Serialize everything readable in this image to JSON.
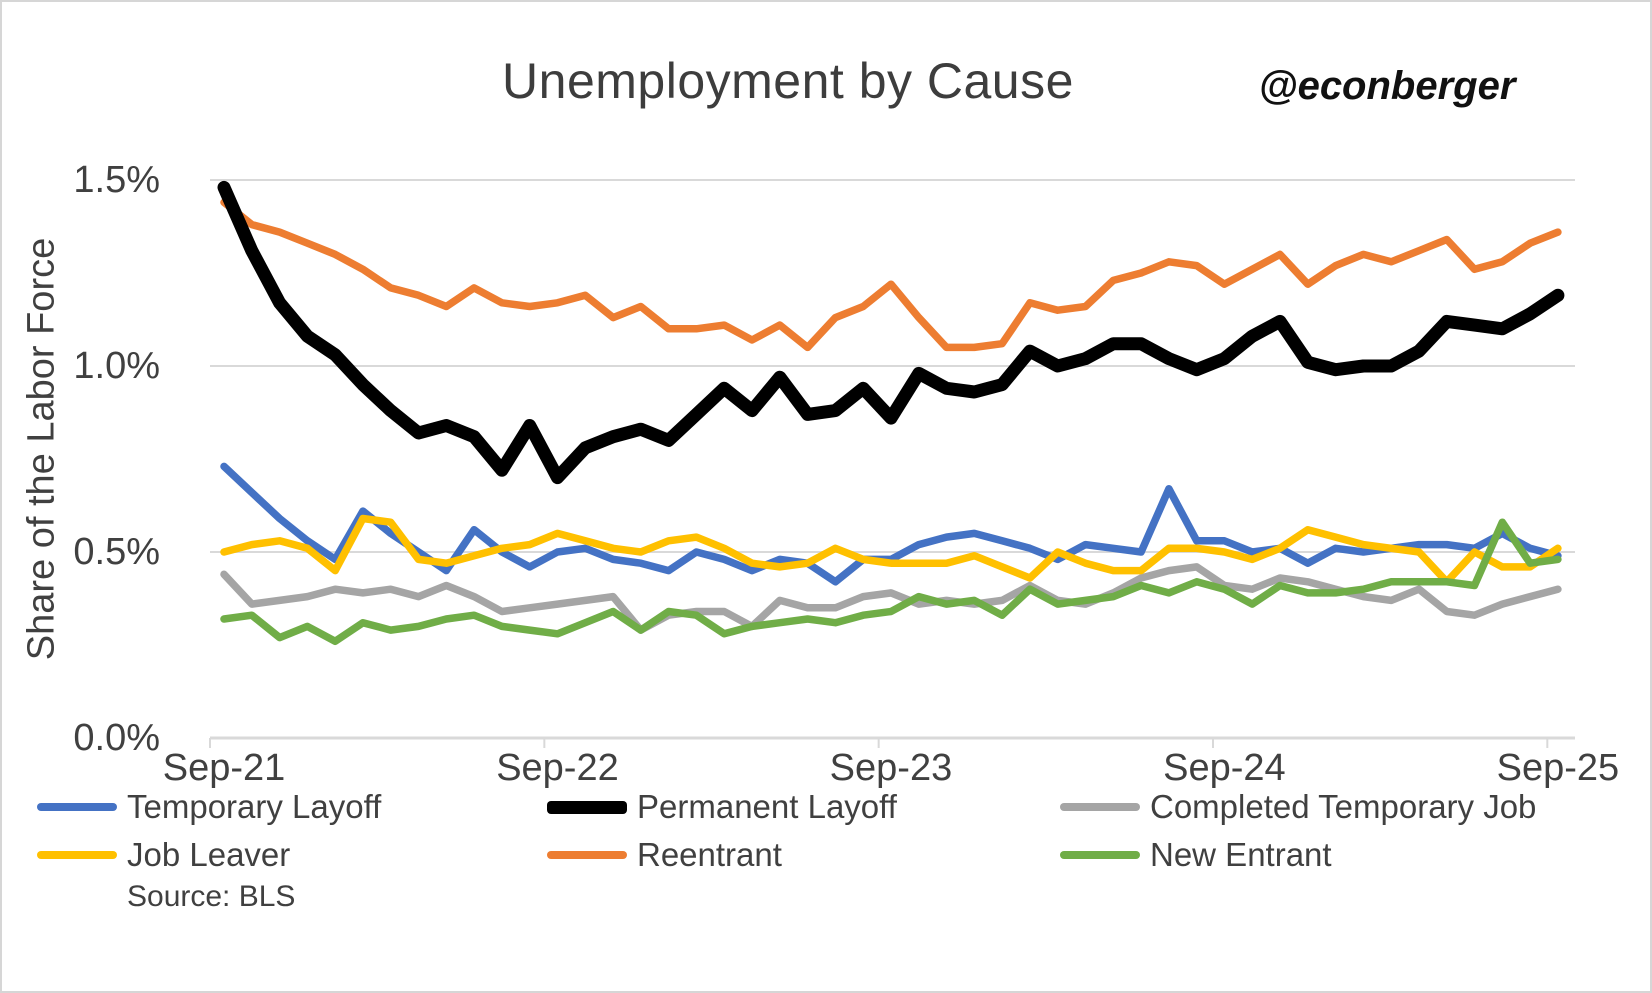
{
  "chart": {
    "handle": "@econberger",
    "source": "Source: BLS"
  },
  "chart_data": {
    "type": "line",
    "title": "Unemployment by Cause",
    "xlabel": "",
    "ylabel": "Share of the Labor Force",
    "ylim": [
      0,
      1.5
    ],
    "y_unit": "%",
    "grid": "horizontal",
    "legend_position": "bottom",
    "x_range": "Monthly, Sep-2021 through Sep-2025",
    "x": [
      "Sep-21",
      "Oct-21",
      "Nov-21",
      "Dec-21",
      "Jan-22",
      "Feb-22",
      "Mar-22",
      "Apr-22",
      "May-22",
      "Jun-22",
      "Jul-22",
      "Aug-22",
      "Sep-22",
      "Oct-22",
      "Nov-22",
      "Dec-22",
      "Jan-23",
      "Feb-23",
      "Mar-23",
      "Apr-23",
      "May-23",
      "Jun-23",
      "Jul-23",
      "Aug-23",
      "Sep-23",
      "Oct-23",
      "Nov-23",
      "Dec-23",
      "Jan-24",
      "Feb-24",
      "Mar-24",
      "Apr-24",
      "May-24",
      "Jun-24",
      "Jul-24",
      "Aug-24",
      "Sep-24",
      "Oct-24",
      "Nov-24",
      "Dec-24",
      "Jan-25",
      "Feb-25",
      "Mar-25",
      "Apr-25",
      "May-25",
      "Jun-25",
      "Jul-25",
      "Aug-25",
      "Sep-25"
    ],
    "x_tick_labels": [
      "Sep-21",
      "Sep-22",
      "Sep-23",
      "Sep-24",
      "Sep-25"
    ],
    "y_ticks": [
      {
        "label": "0.0%",
        "value": 0.0
      },
      {
        "label": "0.5%",
        "value": 0.5
      },
      {
        "label": "1.0%",
        "value": 1.0
      },
      {
        "label": "1.5%",
        "value": 1.5
      }
    ],
    "series": [
      {
        "name": "Temporary Layoff",
        "color": "#4472C4",
        "emphasis": false,
        "values": [
          0.73,
          0.66,
          0.59,
          0.53,
          0.48,
          0.61,
          0.55,
          0.5,
          0.45,
          0.56,
          0.5,
          0.46,
          0.5,
          0.51,
          0.48,
          0.47,
          0.45,
          0.5,
          0.48,
          0.45,
          0.48,
          0.47,
          0.42,
          0.48,
          0.48,
          0.52,
          0.54,
          0.55,
          0.53,
          0.51,
          0.48,
          0.52,
          0.51,
          0.5,
          0.67,
          0.53,
          0.53,
          0.5,
          0.51,
          0.47,
          0.51,
          0.5,
          0.51,
          0.52,
          0.52,
          0.51,
          0.55,
          0.51,
          0.49
        ]
      },
      {
        "name": "Permanent Layoff",
        "color": "#000000",
        "emphasis": true,
        "values": [
          1.48,
          1.31,
          1.17,
          1.08,
          1.03,
          0.95,
          0.88,
          0.82,
          0.84,
          0.81,
          0.72,
          0.84,
          0.7,
          0.78,
          0.81,
          0.83,
          0.8,
          0.87,
          0.94,
          0.88,
          0.97,
          0.87,
          0.88,
          0.94,
          0.86,
          0.98,
          0.94,
          0.93,
          0.95,
          1.04,
          1.0,
          1.02,
          1.06,
          1.06,
          1.02,
          0.99,
          1.02,
          1.08,
          1.12,
          1.01,
          0.99,
          1.0,
          1.0,
          1.04,
          1.12,
          1.11,
          1.1,
          1.14,
          1.19
        ]
      },
      {
        "name": "Completed Temporary Job",
        "color": "#A5A5A5",
        "emphasis": false,
        "values": [
          0.44,
          0.36,
          0.37,
          0.38,
          0.4,
          0.39,
          0.4,
          0.38,
          0.41,
          0.38,
          0.34,
          0.35,
          0.36,
          0.37,
          0.38,
          0.29,
          0.33,
          0.34,
          0.34,
          0.3,
          0.37,
          0.35,
          0.35,
          0.38,
          0.39,
          0.36,
          0.37,
          0.36,
          0.37,
          0.41,
          0.37,
          0.36,
          0.39,
          0.43,
          0.45,
          0.46,
          0.41,
          0.4,
          0.43,
          0.42,
          0.4,
          0.38,
          0.37,
          0.4,
          0.34,
          0.33,
          0.36,
          0.38,
          0.4
        ]
      },
      {
        "name": "Job Leaver",
        "color": "#FFC000",
        "emphasis": false,
        "values": [
          0.5,
          0.52,
          0.53,
          0.51,
          0.45,
          0.59,
          0.58,
          0.48,
          0.47,
          0.49,
          0.51,
          0.52,
          0.55,
          0.53,
          0.51,
          0.5,
          0.53,
          0.54,
          0.51,
          0.47,
          0.46,
          0.47,
          0.51,
          0.48,
          0.47,
          0.47,
          0.47,
          0.49,
          0.46,
          0.43,
          0.5,
          0.47,
          0.45,
          0.45,
          0.51,
          0.51,
          0.5,
          0.48,
          0.51,
          0.56,
          0.54,
          0.52,
          0.51,
          0.5,
          0.42,
          0.5,
          0.46,
          0.46,
          0.51
        ]
      },
      {
        "name": "Reentrant",
        "color": "#ED7D31",
        "emphasis": false,
        "values": [
          1.44,
          1.38,
          1.36,
          1.33,
          1.3,
          1.26,
          1.21,
          1.19,
          1.16,
          1.21,
          1.17,
          1.16,
          1.17,
          1.19,
          1.13,
          1.16,
          1.1,
          1.1,
          1.11,
          1.07,
          1.11,
          1.05,
          1.13,
          1.16,
          1.22,
          1.13,
          1.05,
          1.05,
          1.06,
          1.17,
          1.15,
          1.16,
          1.23,
          1.25,
          1.28,
          1.27,
          1.22,
          1.26,
          1.3,
          1.22,
          1.27,
          1.3,
          1.28,
          1.31,
          1.34,
          1.26,
          1.28,
          1.33,
          1.36
        ]
      },
      {
        "name": "New Entrant",
        "color": "#70AD47",
        "emphasis": false,
        "values": [
          0.32,
          0.33,
          0.27,
          0.3,
          0.26,
          0.31,
          0.29,
          0.3,
          0.32,
          0.33,
          0.3,
          0.29,
          0.28,
          0.31,
          0.34,
          0.29,
          0.34,
          0.33,
          0.28,
          0.3,
          0.31,
          0.32,
          0.31,
          0.33,
          0.34,
          0.38,
          0.36,
          0.37,
          0.33,
          0.4,
          0.36,
          0.37,
          0.38,
          0.41,
          0.39,
          0.42,
          0.4,
          0.36,
          0.41,
          0.39,
          0.39,
          0.4,
          0.42,
          0.42,
          0.42,
          0.41,
          0.58,
          0.47,
          0.48
        ]
      }
    ]
  }
}
